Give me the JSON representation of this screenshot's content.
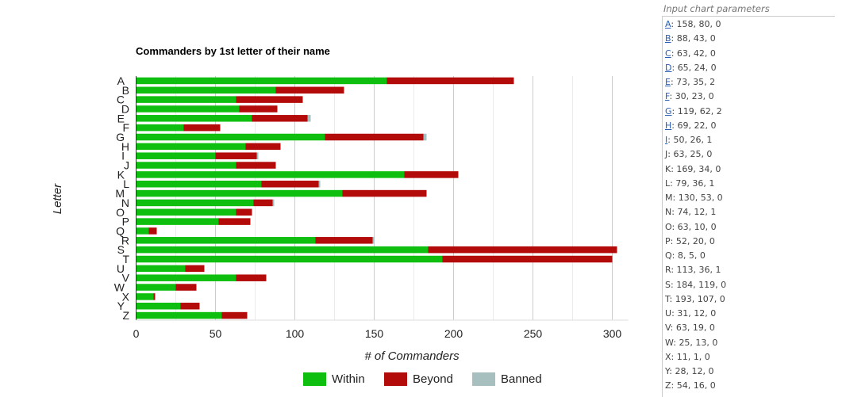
{
  "chart_data": {
    "type": "bar",
    "orientation": "horizontal",
    "stacked": true,
    "title": "Commanders by 1st letter of their name",
    "xlabel": "# of Commanders",
    "ylabel": "Letter",
    "xlim": [
      0,
      310
    ],
    "xticks": [
      0,
      50,
      100,
      150,
      200,
      250,
      300
    ],
    "grid": true,
    "legend_position": "bottom",
    "categories": [
      "A",
      "B",
      "C",
      "D",
      "E",
      "F",
      "G",
      "H",
      "I",
      "J",
      "K",
      "L",
      "M",
      "N",
      "O",
      "P",
      "Q",
      "R",
      "S",
      "T",
      "U",
      "V",
      "W",
      "X",
      "Y",
      "Z"
    ],
    "series": [
      {
        "name": "Within",
        "color": "#0fbf0f",
        "values": [
          158,
          88,
          63,
          65,
          73,
          30,
          119,
          69,
          50,
          63,
          169,
          79,
          130,
          74,
          63,
          52,
          8,
          113,
          184,
          193,
          31,
          63,
          25,
          11,
          28,
          54
        ]
      },
      {
        "name": "Beyond",
        "color": "#b30a0a",
        "values": [
          80,
          43,
          42,
          24,
          35,
          23,
          62,
          22,
          26,
          25,
          34,
          36,
          53,
          12,
          10,
          20,
          5,
          36,
          119,
          107,
          12,
          19,
          13,
          1,
          12,
          16
        ]
      },
      {
        "name": "Banned",
        "color": "#a8bfbf",
        "values": [
          0,
          0,
          0,
          0,
          2,
          0,
          2,
          0,
          1,
          0,
          0,
          1,
          0,
          1,
          0,
          0,
          0,
          1,
          0,
          0,
          0,
          0,
          0,
          0,
          0,
          0
        ]
      }
    ]
  },
  "params_panel": {
    "title": "Input chart parameters",
    "rows": [
      {
        "letter": "A",
        "values": "158, 80, 0",
        "link": true
      },
      {
        "letter": "B",
        "values": "88, 43, 0",
        "link": true
      },
      {
        "letter": "C",
        "values": "63, 42, 0",
        "link": true
      },
      {
        "letter": "D",
        "values": "65, 24, 0",
        "link": true
      },
      {
        "letter": "E",
        "values": "73, 35, 2",
        "link": true
      },
      {
        "letter": "F",
        "values": "30, 23, 0",
        "link": true
      },
      {
        "letter": "G",
        "values": "119, 62, 2",
        "link": true
      },
      {
        "letter": "H",
        "values": "69, 22, 0",
        "link": true
      },
      {
        "letter": "I",
        "values": "50, 26, 1",
        "link": true
      },
      {
        "letter": "J",
        "values": "63, 25, 0",
        "link": false
      },
      {
        "letter": "K",
        "values": "169, 34, 0",
        "link": false
      },
      {
        "letter": "L",
        "values": "79, 36, 1",
        "link": false
      },
      {
        "letter": "M",
        "values": "130, 53, 0",
        "link": false
      },
      {
        "letter": "N",
        "values": "74, 12, 1",
        "link": false
      },
      {
        "letter": "O",
        "values": "63, 10, 0",
        "link": false
      },
      {
        "letter": "P",
        "values": "52, 20, 0",
        "link": false
      },
      {
        "letter": "Q",
        "values": "8, 5, 0",
        "link": false
      },
      {
        "letter": "R",
        "values": "113, 36, 1",
        "link": false
      },
      {
        "letter": "S",
        "values": "184, 119, 0",
        "link": false
      },
      {
        "letter": "T",
        "values": "193, 107, 0",
        "link": false
      },
      {
        "letter": "U",
        "values": "31, 12, 0",
        "link": false
      },
      {
        "letter": "V",
        "values": "63, 19, 0",
        "link": false
      },
      {
        "letter": "W",
        "values": "25, 13, 0",
        "link": false
      },
      {
        "letter": "X",
        "values": "11, 1, 0",
        "link": false
      },
      {
        "letter": "Y",
        "values": "28, 12, 0",
        "link": false
      },
      {
        "letter": "Z",
        "values": "54, 16, 0",
        "link": false
      }
    ]
  }
}
